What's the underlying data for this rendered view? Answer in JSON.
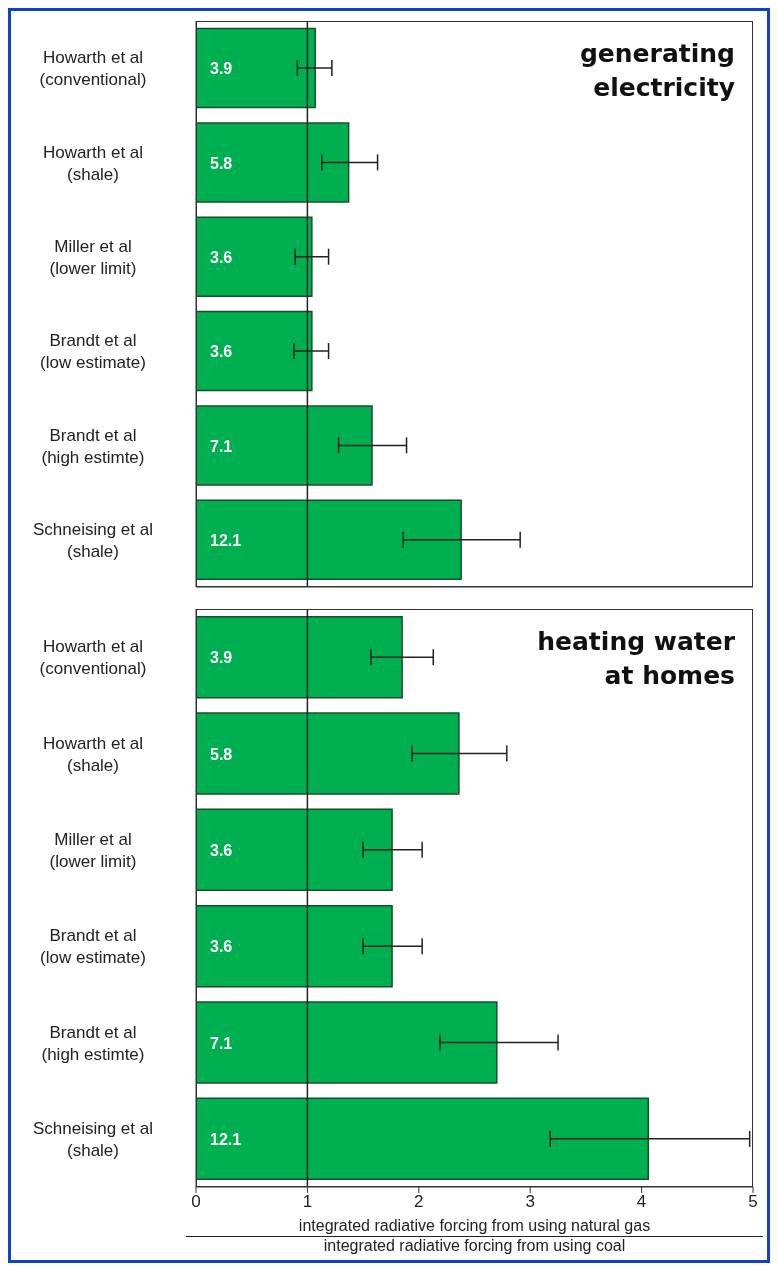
{
  "chart_data": [
    {
      "type": "bar",
      "orientation": "horizontal",
      "title": "generating electricity",
      "categories": [
        "Howarth et al\n(conventional)",
        "Howarth et al\n(shale)",
        "Miller et al\n(lower limit)",
        "Brandt et al\n(low estimate)",
        "Brandt et al\n(high estimte)",
        "Schneising et al\n(shale)"
      ],
      "values": [
        1.07,
        1.37,
        1.04,
        1.04,
        1.58,
        2.38
      ],
      "errors": [
        [
          0.91,
          1.22
        ],
        [
          1.13,
          1.63
        ],
        [
          0.89,
          1.19
        ],
        [
          0.88,
          1.19
        ],
        [
          1.28,
          1.89
        ],
        [
          1.86,
          2.91
        ]
      ],
      "annotations": [
        {
          "text": "3.9",
          "y": "Howarth et al\n(conventional)"
        },
        {
          "text": "5.8",
          "y": "Howarth et al\n(shale)"
        },
        {
          "text": "3.6",
          "y": "Miller et al\n(lower limit)"
        },
        {
          "text": "3.6",
          "y": "Brandt et al\n(low estimate)"
        },
        {
          "text": "7.1",
          "y": "Brandt et al\n(high estimte)"
        },
        {
          "text": "12.1",
          "y": "Schneising et al\n(shale)"
        }
      ],
      "color": "#00b050",
      "xlim": [
        0,
        5
      ],
      "xticks": [
        0,
        1,
        2,
        3,
        4,
        5
      ],
      "tick_labels": "y",
      "ref_lines": [
        {
          "axis": "x",
          "value": 1,
          "color": "#222222"
        }
      ]
    },
    {
      "type": "bar",
      "orientation": "horizontal",
      "title": "heating water at homes",
      "categories": [
        "Howarth et al\n(conventional)",
        "Howarth et al\n(shale)",
        "Miller et al\n(lower limit)",
        "Brandt et al\n(low estimate)",
        "Brandt et al\n(high estimte)",
        "Schneising et al\n(shale)"
      ],
      "values": [
        1.85,
        2.36,
        1.76,
        1.76,
        2.7,
        4.06
      ],
      "errors": [
        [
          1.57,
          2.13
        ],
        [
          1.94,
          2.79
        ],
        [
          1.5,
          2.03
        ],
        [
          1.5,
          2.03
        ],
        [
          2.19,
          3.25
        ],
        [
          3.18,
          4.97
        ]
      ],
      "annotations": [
        {
          "text": "3.9",
          "y": "Howarth et al\n(conventional)"
        },
        {
          "text": "5.8",
          "y": "Howarth et al\n(shale)"
        },
        {
          "text": "3.6",
          "y": "Miller et al\n(lower limit)"
        },
        {
          "text": "3.6",
          "y": "Brandt et al\n(low estimate)"
        },
        {
          "text": "7.1",
          "y": "Brandt et al\n(high estimte)"
        },
        {
          "text": "12.1",
          "y": "Schneising et al\n(shale)"
        }
      ],
      "color": "#00b050",
      "xlim": [
        0,
        5
      ],
      "xticks": [
        0,
        1,
        2,
        3,
        4,
        5
      ],
      "xlabel": "integrated radiative forcing from using natural gas\nintegrated radiative forcing from using coal",
      "ref_lines": [
        {
          "axis": "x",
          "value": 1,
          "color": "#222222"
        }
      ]
    }
  ]
}
